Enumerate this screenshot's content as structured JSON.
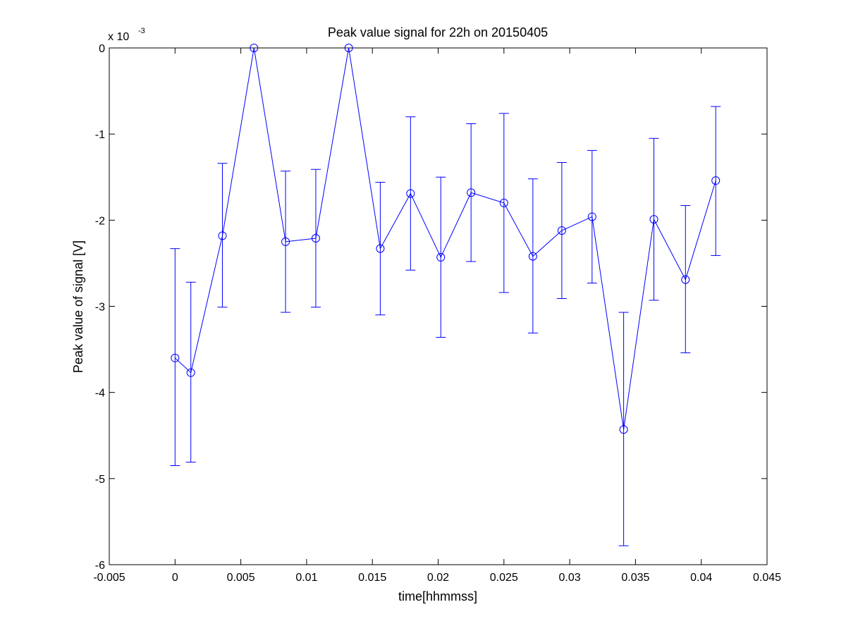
{
  "chart_data": {
    "type": "line",
    "title": "Peak value signal for 22h on 20150405",
    "xlabel": "time[hhmmss]",
    "ylabel": "Peak value of signal [V]",
    "y_multiplier_label": "x 10",
    "y_multiplier_exponent": "-3",
    "xlim": [
      -0.005,
      0.045
    ],
    "ylim": [
      -6,
      0
    ],
    "y_scale_factor": 0.001,
    "grid": false,
    "legend": "none",
    "x_ticks": [
      -0.005,
      0,
      0.005,
      0.01,
      0.015,
      0.02,
      0.025,
      0.03,
      0.035,
      0.04,
      0.045
    ],
    "x_tick_labels": [
      "-0.005",
      "0",
      "0.005",
      "0.01",
      "0.015",
      "0.02",
      "0.025",
      "0.03",
      "0.035",
      "0.04",
      "0.045"
    ],
    "y_ticks": [
      -6,
      -5,
      -4,
      -3,
      -2,
      -1,
      0
    ],
    "y_tick_labels": [
      "-6",
      "-5",
      "-4",
      "-3",
      "-2",
      "-1",
      "0"
    ],
    "series": [
      {
        "color": "#0000ff",
        "marker": "circle",
        "error_bars": true,
        "points": [
          {
            "x": 0.0,
            "y": -3.6,
            "err_low": -4.85,
            "err_high": -2.33
          },
          {
            "x": 0.0012,
            "y": -3.77,
            "err_low": -4.81,
            "err_high": -2.72
          },
          {
            "x": 0.0036,
            "y": -2.18,
            "err_low": -3.01,
            "err_high": -1.34
          },
          {
            "x": 0.006,
            "y": 0.0,
            "err_low": null,
            "err_high": null
          },
          {
            "x": 0.0084,
            "y": -2.25,
            "err_low": -3.07,
            "err_high": -1.43
          },
          {
            "x": 0.0107,
            "y": -2.21,
            "err_low": -3.01,
            "err_high": -1.41
          },
          {
            "x": 0.0132,
            "y": 0.0,
            "err_low": null,
            "err_high": null
          },
          {
            "x": 0.0156,
            "y": -2.33,
            "err_low": -3.1,
            "err_high": -1.56
          },
          {
            "x": 0.0179,
            "y": -1.69,
            "err_low": -2.58,
            "err_high": -0.8
          },
          {
            "x": 0.0202,
            "y": -2.43,
            "err_low": -3.36,
            "err_high": -1.5
          },
          {
            "x": 0.0225,
            "y": -1.68,
            "err_low": -2.48,
            "err_high": -0.88
          },
          {
            "x": 0.025,
            "y": -1.8,
            "err_low": -2.84,
            "err_high": -0.76
          },
          {
            "x": 0.0272,
            "y": -2.42,
            "err_low": -3.31,
            "err_high": -1.52
          },
          {
            "x": 0.0294,
            "y": -2.12,
            "err_low": -2.91,
            "err_high": -1.33
          },
          {
            "x": 0.0317,
            "y": -1.96,
            "err_low": -2.73,
            "err_high": -1.19
          },
          {
            "x": 0.0341,
            "y": -4.43,
            "err_low": -5.78,
            "err_high": -3.07
          },
          {
            "x": 0.0364,
            "y": -1.99,
            "err_low": -2.93,
            "err_high": -1.05
          },
          {
            "x": 0.0388,
            "y": -2.69,
            "err_low": -3.54,
            "err_high": -1.83
          },
          {
            "x": 0.0411,
            "y": -1.54,
            "err_low": -2.41,
            "err_high": -0.68
          }
        ]
      }
    ]
  }
}
